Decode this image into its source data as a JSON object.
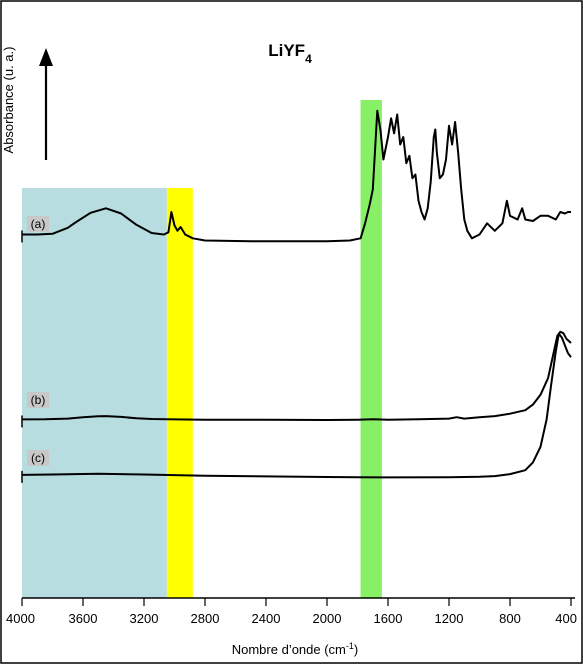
{
  "chart_data": {
    "type": "line",
    "title": "LiYF",
    "title_subscript": "4",
    "xlabel": "Nombre d’onde (cm",
    "xlabel_superscript": "-1",
    "xlabel_close": ")",
    "ylabel": "Absorbance (u. a.)",
    "xlim": [
      4000,
      400
    ],
    "x_reversed": true,
    "x_ticks": [
      "4000",
      "3600",
      "3200",
      "2800",
      "2400",
      "2000",
      "1600",
      "1200",
      "800",
      "400"
    ],
    "grid": false,
    "highlight_bands": [
      {
        "from": 4000,
        "to": 3050,
        "color": "#b8dde0"
      },
      {
        "from": 3050,
        "to": 2880,
        "color": "#ffff00"
      },
      {
        "from": 1780,
        "to": 1640,
        "color": "#88f066"
      }
    ],
    "series": [
      {
        "name": "(a)",
        "points": [
          [
            4000,
            0.1
          ],
          [
            3900,
            0.1
          ],
          [
            3800,
            0.11
          ],
          [
            3700,
            0.19
          ],
          [
            3650,
            0.26
          ],
          [
            3550,
            0.39
          ],
          [
            3450,
            0.45
          ],
          [
            3350,
            0.38
          ],
          [
            3250,
            0.23
          ],
          [
            3150,
            0.12
          ],
          [
            3070,
            0.1
          ],
          [
            3040,
            0.13
          ],
          [
            3020,
            0.4
          ],
          [
            3000,
            0.22
          ],
          [
            2980,
            0.15
          ],
          [
            2960,
            0.2
          ],
          [
            2930,
            0.1
          ],
          [
            2880,
            0.05
          ],
          [
            2800,
            0.02
          ],
          [
            2500,
            0.01
          ],
          [
            2200,
            0.01
          ],
          [
            2000,
            0.01
          ],
          [
            1850,
            0.02
          ],
          [
            1780,
            0.05
          ],
          [
            1750,
            0.25
          ],
          [
            1720,
            0.5
          ],
          [
            1700,
            0.7
          ],
          [
            1680,
            1.4
          ],
          [
            1670,
            1.75
          ],
          [
            1650,
            1.5
          ],
          [
            1630,
            1.1
          ],
          [
            1600,
            1.4
          ],
          [
            1580,
            1.65
          ],
          [
            1560,
            1.45
          ],
          [
            1540,
            1.7
          ],
          [
            1520,
            1.3
          ],
          [
            1500,
            1.4
          ],
          [
            1480,
            1.05
          ],
          [
            1460,
            1.15
          ],
          [
            1440,
            0.85
          ],
          [
            1420,
            0.9
          ],
          [
            1400,
            0.55
          ],
          [
            1380,
            0.4
          ],
          [
            1360,
            0.3
          ],
          [
            1340,
            0.45
          ],
          [
            1320,
            0.8
          ],
          [
            1300,
            1.4
          ],
          [
            1290,
            1.5
          ],
          [
            1280,
            1.2
          ],
          [
            1260,
            0.85
          ],
          [
            1240,
            0.9
          ],
          [
            1220,
            1.1
          ],
          [
            1200,
            1.55
          ],
          [
            1180,
            1.3
          ],
          [
            1160,
            1.6
          ],
          [
            1140,
            1.2
          ],
          [
            1120,
            0.7
          ],
          [
            1100,
            0.3
          ],
          [
            1080,
            0.15
          ],
          [
            1050,
            0.05
          ],
          [
            1000,
            0.1
          ],
          [
            950,
            0.25
          ],
          [
            900,
            0.15
          ],
          [
            850,
            0.25
          ],
          [
            820,
            0.55
          ],
          [
            800,
            0.35
          ],
          [
            750,
            0.3
          ],
          [
            720,
            0.45
          ],
          [
            700,
            0.3
          ],
          [
            650,
            0.28
          ],
          [
            600,
            0.35
          ],
          [
            550,
            0.35
          ],
          [
            500,
            0.3
          ],
          [
            470,
            0.4
          ],
          [
            440,
            0.38
          ],
          [
            420,
            0.4
          ],
          [
            400,
            0.4
          ]
        ]
      },
      {
        "name": "(b)",
        "points": [
          [
            4000,
            0.04
          ],
          [
            3850,
            0.05
          ],
          [
            3700,
            0.1
          ],
          [
            3600,
            0.2
          ],
          [
            3500,
            0.27
          ],
          [
            3450,
            0.28
          ],
          [
            3350,
            0.22
          ],
          [
            3250,
            0.12
          ],
          [
            3150,
            0.07
          ],
          [
            3050,
            0.05
          ],
          [
            2800,
            0.02
          ],
          [
            2400,
            0.02
          ],
          [
            2000,
            0.0
          ],
          [
            1800,
            0.02
          ],
          [
            1700,
            0.05
          ],
          [
            1600,
            0.02
          ],
          [
            1400,
            0.05
          ],
          [
            1200,
            0.1
          ],
          [
            1150,
            0.2
          ],
          [
            1100,
            0.1
          ],
          [
            1000,
            0.2
          ],
          [
            900,
            0.28
          ],
          [
            800,
            0.45
          ],
          [
            700,
            0.7
          ],
          [
            650,
            1.1
          ],
          [
            600,
            1.8
          ],
          [
            550,
            3.0
          ],
          [
            520,
            4.5
          ],
          [
            490,
            6.0
          ],
          [
            470,
            6.3
          ],
          [
            450,
            6.2
          ],
          [
            430,
            5.8
          ],
          [
            400,
            5.5
          ]
        ]
      },
      {
        "name": "(c)",
        "points": [
          [
            4000,
            0.16
          ],
          [
            3800,
            0.18
          ],
          [
            3500,
            0.22
          ],
          [
            3200,
            0.18
          ],
          [
            2800,
            0.12
          ],
          [
            2400,
            0.08
          ],
          [
            2000,
            0.05
          ],
          [
            1800,
            0.04
          ],
          [
            1600,
            0.03
          ],
          [
            1200,
            0.04
          ],
          [
            1000,
            0.06
          ],
          [
            900,
            0.1
          ],
          [
            800,
            0.2
          ],
          [
            700,
            0.4
          ],
          [
            650,
            0.8
          ],
          [
            600,
            1.6
          ],
          [
            560,
            3.0
          ],
          [
            530,
            4.8
          ],
          [
            500,
            6.5
          ],
          [
            480,
            7.4
          ],
          [
            460,
            7.2
          ],
          [
            440,
            6.8
          ],
          [
            420,
            6.4
          ],
          [
            400,
            6.2
          ]
        ]
      }
    ]
  }
}
